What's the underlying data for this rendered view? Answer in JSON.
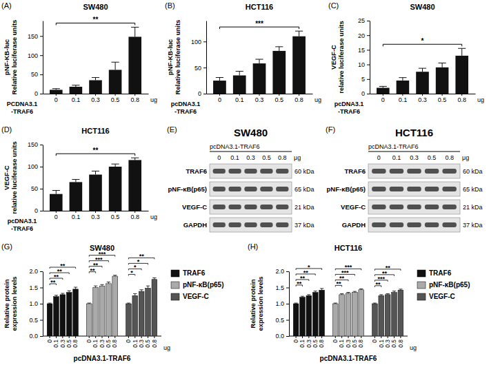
{
  "chart_data": [
    {
      "type": "bar",
      "panel": "(A)",
      "title": "SW480",
      "y_label": [
        "pNF-KB-luc",
        "Relative luciferase units"
      ],
      "x_label": [
        "PCDNA3.1",
        "-TRAF6"
      ],
      "x_unit": "ug",
      "categories": [
        "0",
        "0.1",
        "0.3",
        "0.5",
        "0.8"
      ],
      "values": [
        10,
        18,
        35,
        62,
        148
      ],
      "errors": [
        3,
        4,
        7,
        20,
        25
      ],
      "color": "#111111",
      "ylim": [
        0,
        190
      ],
      "yticks": [
        0,
        50,
        100,
        150
      ],
      "significance": "**"
    },
    {
      "type": "bar",
      "panel": "(B)",
      "title": "HCT116",
      "y_label": [
        "pNF-KB-luc",
        "Relative luciferase units"
      ],
      "x_label": [
        "pcDNA3.1",
        "-TRAF6"
      ],
      "x_unit": "ug",
      "categories": [
        "0",
        "0.1",
        "0.3",
        "0.5",
        "0.8"
      ],
      "values": [
        25,
        35,
        58,
        82,
        110
      ],
      "errors": [
        6,
        8,
        8,
        8,
        10
      ],
      "color": "#111111",
      "ylim": [
        0,
        140
      ],
      "yticks": [
        0,
        50,
        100
      ],
      "significance": "***"
    },
    {
      "type": "bar",
      "panel": "(C)",
      "title": "SW480",
      "y_label": [
        "VEGF-C",
        "relative luciferase units"
      ],
      "x_label": [
        "pcDNA3.1",
        "-TRAF6"
      ],
      "x_unit": "ug",
      "categories": [
        "0",
        "0.1",
        "0.3",
        "0.5",
        "0.8"
      ],
      "values": [
        2,
        4.5,
        7.5,
        9,
        13
      ],
      "errors": [
        0.5,
        1,
        1.2,
        1.5,
        2.5
      ],
      "color": "#111111",
      "ylim": [
        0,
        25
      ],
      "yticks": [
        0,
        5,
        10,
        15,
        20,
        25
      ],
      "significance": "*"
    },
    {
      "type": "bar",
      "panel": "(D)",
      "title": "HCT116",
      "y_label": [
        "VEGF-C",
        "relative luciferase units"
      ],
      "x_label": [
        "pcDNA3.1",
        "-TRAF6"
      ],
      "x_unit": "ug",
      "categories": [
        "0",
        "0.1",
        "0.3",
        "0.5",
        "0.8"
      ],
      "values": [
        38,
        65,
        82,
        100,
        115
      ],
      "errors": [
        8,
        6,
        8,
        6,
        5
      ],
      "color": "#111111",
      "ylim": [
        0,
        150
      ],
      "yticks": [
        0,
        50,
        100,
        150
      ],
      "significance": "**"
    },
    {
      "type": "blot",
      "panel": "(E)",
      "title": "SW480",
      "header": "pcDNA3.1-TRAF6",
      "lanes": [
        "0",
        "0.1",
        "0.3",
        "0.5",
        "0.8"
      ],
      "unit": "μg",
      "rows": [
        {
          "label": "TRAF6",
          "size": "60 kDa"
        },
        {
          "label": "pNF-κB(p65)",
          "size": "65 kDa"
        },
        {
          "label": "VEGF-C",
          "size": "21 kDa"
        },
        {
          "label": "GAPDH",
          "size": "37 kDa"
        }
      ]
    },
    {
      "type": "blot",
      "panel": "(F)",
      "title": "HCT116",
      "header": "pcDNA3.1-TRAF6",
      "lanes": [
        "0",
        "0.1",
        "0.3",
        "0.5",
        "0.8"
      ],
      "unit": "μg",
      "rows": [
        {
          "label": "TRAF6",
          "size": "60 kDa"
        },
        {
          "label": "pNF-κB(p65)",
          "size": "65 kDa"
        },
        {
          "label": "VEGF-C",
          "size": "21 kDa"
        },
        {
          "label": "GAPDH",
          "size": "37 kDa"
        }
      ]
    },
    {
      "type": "grouped_bar",
      "panel": "(G)",
      "title": "SW480",
      "y_label": [
        "Relative protein",
        "expression levels"
      ],
      "x_label": "pcDNA3.1-TRAF6",
      "x_unit": "ug",
      "categories": [
        "0",
        "0.1",
        "0.3",
        "0.5",
        "0.8"
      ],
      "series": [
        {
          "name": "TRAF6",
          "color": "#111111",
          "values": [
            1.0,
            1.22,
            1.28,
            1.35,
            1.45
          ],
          "errors": [
            0.02,
            0.04,
            0.04,
            0.05,
            0.06
          ],
          "significance": [
            "**",
            "**",
            "**",
            "**"
          ]
        },
        {
          "name": "pNF-κB(p65)",
          "color": "#aaaaaa",
          "values": [
            1.0,
            1.5,
            1.55,
            1.62,
            1.85
          ],
          "errors": [
            0.02,
            0.05,
            0.04,
            0.05,
            0.03
          ],
          "significance": [
            "**",
            "**",
            "***",
            "***"
          ]
        },
        {
          "name": "VEGF-C",
          "color": "#555555",
          "values": [
            1.0,
            1.25,
            1.38,
            1.48,
            1.75
          ],
          "errors": [
            0.02,
            0.06,
            0.05,
            0.07,
            0.05
          ],
          "significance": [
            "*",
            "*",
            "*",
            "**"
          ]
        }
      ],
      "ylim": [
        0,
        2
      ],
      "yticks": [
        {
          "value": 0,
          "label": "0.0"
        },
        {
          "value": 0.5,
          "label": "0.5"
        },
        {
          "value": 1,
          "label": "1.0"
        },
        {
          "value": 1.5,
          "label": "1.5"
        },
        {
          "value": 2,
          "label": "2.0"
        }
      ],
      "legend": "right"
    },
    {
      "type": "grouped_bar",
      "panel": "(H)",
      "title": "HCT116",
      "y_label": [
        "Relative protein",
        "expression levels"
      ],
      "x_label": "pcDNA3.1-TRAF6",
      "x_unit": "ug",
      "categories": [
        "0",
        "0.1",
        "0.3",
        "0.5",
        "0.8"
      ],
      "series": [
        {
          "name": "TRAF6",
          "color": "#111111",
          "values": [
            1.0,
            1.2,
            1.25,
            1.35,
            1.42
          ],
          "errors": [
            0.02,
            0.03,
            0.03,
            0.04,
            0.05
          ],
          "significance": [
            "**",
            "**",
            "**",
            "*"
          ]
        },
        {
          "name": "pNF-κB(p65)",
          "color": "#aaaaaa",
          "values": [
            1.0,
            1.28,
            1.32,
            1.35,
            1.43
          ],
          "errors": [
            0.02,
            0.03,
            0.03,
            0.03,
            0.03
          ],
          "significance": [
            "**",
            "**",
            "***",
            "***"
          ]
        },
        {
          "name": "VEGF-C",
          "color": "#555555",
          "values": [
            1.0,
            1.25,
            1.28,
            1.35,
            1.42
          ],
          "errors": [
            0.02,
            0.03,
            0.03,
            0.04,
            0.03
          ],
          "significance": [
            "**",
            "***",
            "**",
            "**"
          ]
        }
      ],
      "ylim": [
        0,
        2
      ],
      "yticks": [
        {
          "value": 0,
          "label": "0.0"
        },
        {
          "value": 0.5,
          "label": "0.5"
        },
        {
          "value": 1,
          "label": "1.0"
        },
        {
          "value": 1.5,
          "label": "1.5"
        },
        {
          "value": 2,
          "label": "2.0"
        }
      ],
      "legend": "right"
    }
  ]
}
